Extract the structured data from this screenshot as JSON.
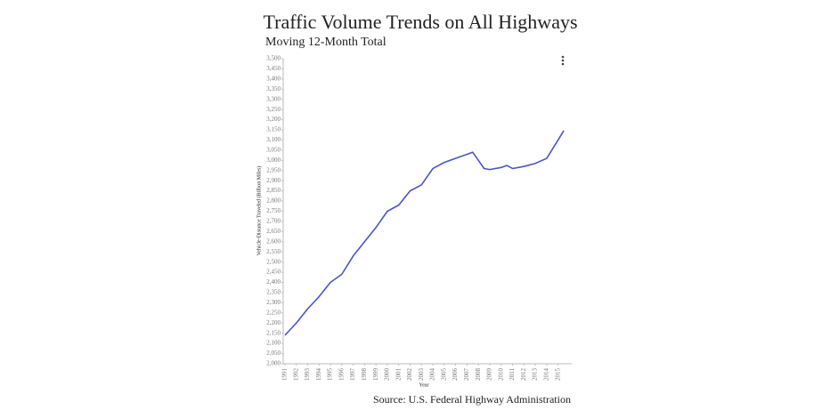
{
  "chart_data": {
    "type": "line",
    "title": "Traffic Volume Trends on All Highways",
    "subtitle": "Moving 12-Month Total",
    "y_label": "Vehicle-Distance Traveled (Billion Miles)",
    "x_label": "Year",
    "source": "Source:  U.S. Federal Highway Administration",
    "x": [
      1991,
      1992,
      1993,
      1994,
      1995,
      1996,
      1997,
      1998,
      1999,
      2000,
      2001,
      2002,
      2003,
      2004,
      2005,
      2006,
      2007,
      2007.5,
      2008,
      2008.5,
      2009,
      2010,
      2010.5,
      2011,
      2012,
      2013,
      2014,
      2015,
      2015.5
    ],
    "series": [
      {
        "name": "Traffic Volume",
        "color": "#4a55c8",
        "values": [
          2140,
          2200,
          2270,
          2330,
          2400,
          2440,
          2530,
          2600,
          2670,
          2750,
          2780,
          2850,
          2880,
          2960,
          2990,
          3010,
          3030,
          3040,
          3000,
          2960,
          2955,
          2965,
          2975,
          2960,
          2970,
          2985,
          3010,
          3100,
          3146
        ]
      }
    ],
    "xlim": [
      1990.85,
      2016.2
    ],
    "xticks": [
      1991,
      1992,
      1993,
      1994,
      1995,
      1996,
      1997,
      1998,
      1999,
      2000,
      2001,
      2002,
      2003,
      2004,
      2005,
      2006,
      2007,
      2008,
      2009,
      2010,
      2011,
      2012,
      2013,
      2014,
      2015
    ],
    "ylim": [
      2000,
      3500
    ],
    "yticks": [
      {
        "value": 2000,
        "label": "2,000"
      },
      {
        "value": 2050,
        "label": "2,050"
      },
      {
        "value": 2100,
        "label": "2,100"
      },
      {
        "value": 2150,
        "label": "2,150"
      },
      {
        "value": 2200,
        "label": "2,200"
      },
      {
        "value": 2250,
        "label": "2,250"
      },
      {
        "value": 2300,
        "label": "2,300"
      },
      {
        "value": 2350,
        "label": "2,350"
      },
      {
        "value": 2400,
        "label": "2,400"
      },
      {
        "value": 2450,
        "label": "2,450"
      },
      {
        "value": 2500,
        "label": "2,500"
      },
      {
        "value": 2550,
        "label": "2,550"
      },
      {
        "value": 2600,
        "label": "2,600"
      },
      {
        "value": 2650,
        "label": "2,650"
      },
      {
        "value": 2700,
        "label": "2,700"
      },
      {
        "value": 2750,
        "label": "2,750"
      },
      {
        "value": 2800,
        "label": "2,800"
      },
      {
        "value": 2850,
        "label": "2,850"
      },
      {
        "value": 2900,
        "label": "2,900"
      },
      {
        "value": 2950,
        "label": "2,950"
      },
      {
        "value": 3000,
        "label": "3,000"
      },
      {
        "value": 3050,
        "label": "3,050"
      },
      {
        "value": 3100,
        "label": "3,100"
      },
      {
        "value": 3150,
        "label": "3,150"
      },
      {
        "value": 3200,
        "label": "3,200"
      },
      {
        "value": 3250,
        "label": "3,250"
      },
      {
        "value": 3300,
        "label": "3,300"
      },
      {
        "value": 3350,
        "label": "3,350"
      },
      {
        "value": 3400,
        "label": "3,400"
      },
      {
        "value": 3450,
        "label": "3,450"
      },
      {
        "value": 3500,
        "label": "3,500"
      }
    ]
  }
}
